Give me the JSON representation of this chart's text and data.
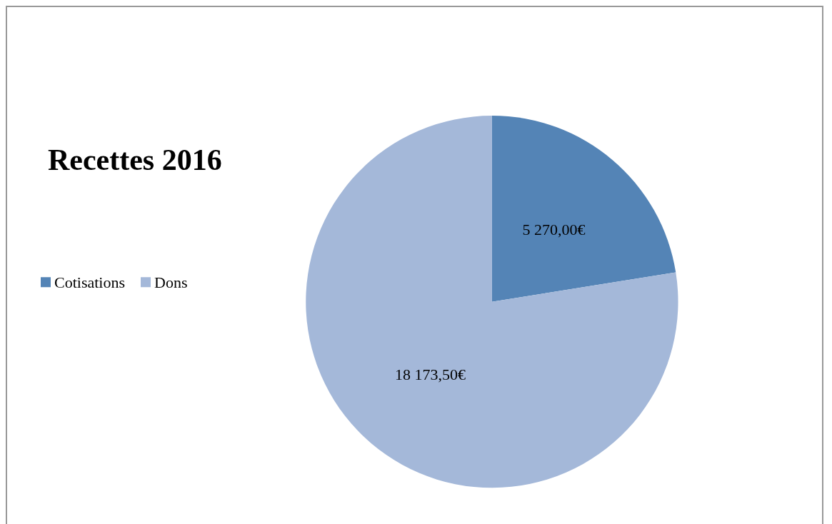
{
  "chart_data": {
    "type": "pie",
    "title": "Recettes 2016",
    "categories": [
      "Cotisations",
      "Dons"
    ],
    "values": [
      5270,
      18173.5
    ],
    "colors": [
      "#5484b6",
      "#a4b8d9"
    ],
    "value_labels": [
      "5 270,00€",
      "18 173,50€"
    ],
    "legend": "left"
  }
}
